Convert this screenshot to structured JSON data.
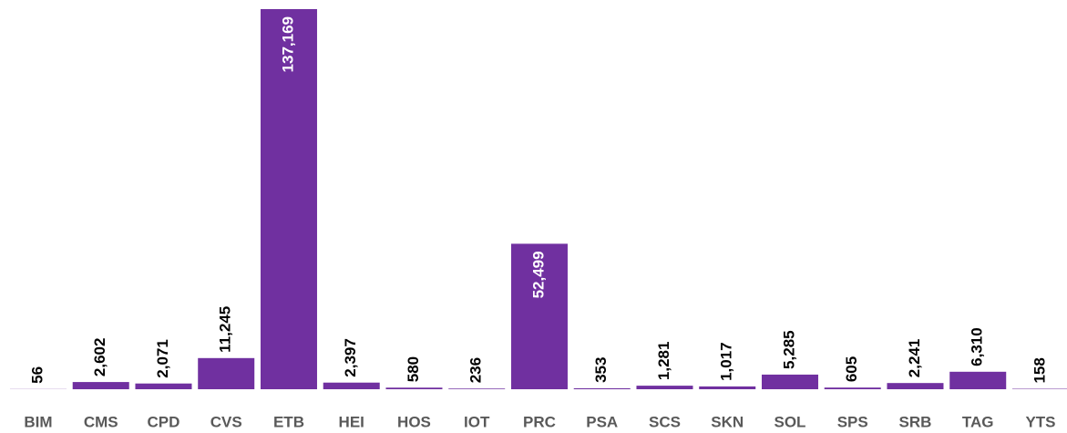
{
  "chart_data": {
    "type": "bar",
    "categories": [
      "BIM",
      "CMS",
      "CPD",
      "CVS",
      "ETB",
      "HEI",
      "HOS",
      "IOT",
      "PRC",
      "PSA",
      "SCS",
      "SKN",
      "SOL",
      "SPS",
      "SRB",
      "TAG",
      "YTS"
    ],
    "values": [
      56,
      2602,
      2071,
      11245,
      137169,
      2397,
      580,
      236,
      52499,
      353,
      1281,
      1017,
      5285,
      605,
      2241,
      6310,
      158
    ],
    "value_labels": [
      "56",
      "2,602",
      "2,071",
      "11,245",
      "137,169",
      "2,397",
      "580",
      "236",
      "52,499",
      "353",
      "1,281",
      "1,017",
      "5,285",
      "605",
      "2,241",
      "6,310",
      "158"
    ],
    "color": "#7030a0"
  }
}
